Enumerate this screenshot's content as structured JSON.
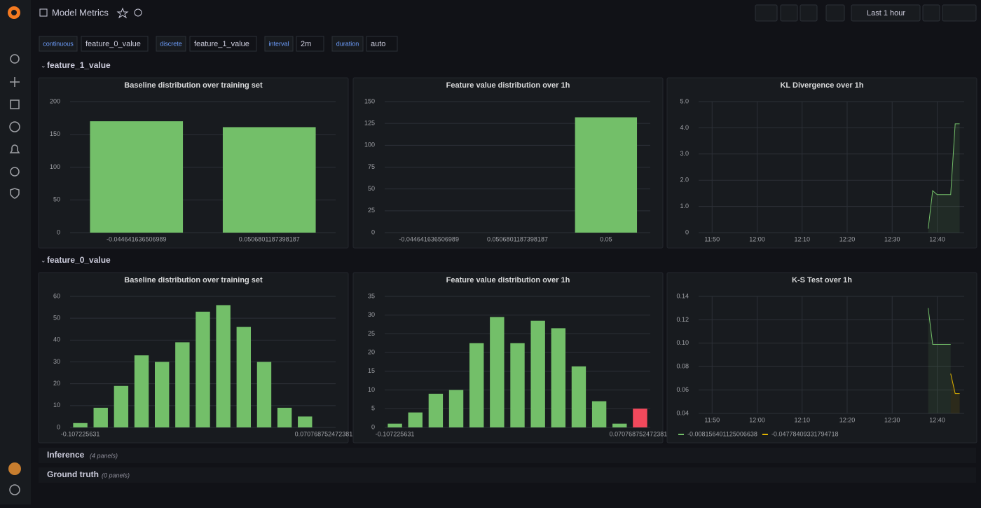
{
  "header": {
    "title": "Model Metrics",
    "time_range": "Last 1 hour"
  },
  "variables": [
    {
      "label": "continuous",
      "value": "feature_0_value"
    },
    {
      "label": "discrete",
      "value": "feature_1_value"
    },
    {
      "label": "interval",
      "value": "2m"
    },
    {
      "label": "duration",
      "value": "auto"
    }
  ],
  "rows": [
    {
      "title": "feature_1_value"
    },
    {
      "title": "feature_0_value"
    }
  ],
  "collapsed_rows": [
    {
      "title": "Inference",
      "note": "(4 panels)"
    },
    {
      "title": "Ground truth",
      "note": "(0 panels)"
    }
  ],
  "chart_data": [
    {
      "type": "bar",
      "title": "Baseline distribution over training set",
      "categories": [
        "-0.044641636506989",
        "0.0506801187398187"
      ],
      "values": [
        170,
        161
      ],
      "color": "#73bf69",
      "ylim": [
        0,
        200
      ],
      "yticks": [
        0,
        50,
        100,
        150,
        200
      ],
      "grid": true
    },
    {
      "type": "bar",
      "title": "Feature value distribution over 1h",
      "categories": [
        "-0.044641636506989",
        "0.0506801187398187",
        "0.05"
      ],
      "values": [
        null,
        null,
        132
      ],
      "color": "#73bf69",
      "ylim": [
        0,
        150
      ],
      "yticks": [
        0,
        25,
        50,
        75,
        100,
        125,
        150
      ],
      "grid": true
    },
    {
      "type": "line",
      "title": "KL Divergence over 1h",
      "x": [
        "12:38",
        "12:39",
        "12:40",
        "12:41",
        "12:42",
        "12:43",
        "12:44",
        "12:45"
      ],
      "values": [
        0.15,
        1.6,
        1.45,
        1.45,
        1.45,
        1.45,
        4.15,
        4.15
      ],
      "color": "#73bf69",
      "xlim": [
        "11:47",
        "12:46"
      ],
      "xticks": [
        "11:50",
        "12:00",
        "12:10",
        "12:20",
        "12:30",
        "12:40"
      ],
      "ylim": [
        0,
        5
      ],
      "yticks": [
        0,
        {
          "value": 1,
          "label": "1.0"
        },
        {
          "value": 2,
          "label": "2.0"
        },
        {
          "value": 3,
          "label": "3.0"
        },
        {
          "value": 4,
          "label": "4.0"
        },
        {
          "value": 5,
          "label": "5.0"
        }
      ],
      "grid": true
    },
    {
      "type": "bar",
      "title": "Baseline distribution over training set",
      "categories": [
        "-0.107225631",
        null,
        null,
        null,
        null,
        null,
        null,
        null,
        null,
        null,
        null,
        null,
        "0.0707687524723815"
      ],
      "values": [
        2,
        9,
        19,
        33,
        30,
        39,
        53,
        56,
        46,
        30,
        9,
        5,
        0
      ],
      "color": "#73bf69",
      "ylim": [
        0,
        60
      ],
      "yticks": [
        0,
        10,
        20,
        30,
        40,
        50,
        60
      ],
      "grid": true
    },
    {
      "type": "bar",
      "title": "Feature value distribution over 1h",
      "categories": [
        "-0.107225631",
        null,
        null,
        null,
        null,
        null,
        null,
        null,
        null,
        null,
        null,
        null,
        "0.0707687524723815"
      ],
      "values": [
        1,
        4,
        9,
        10,
        22.5,
        29.5,
        22.5,
        28.5,
        26.5,
        16.3,
        7,
        1,
        5
      ],
      "colors": [
        "#73bf69",
        "#73bf69",
        "#73bf69",
        "#73bf69",
        "#73bf69",
        "#73bf69",
        "#73bf69",
        "#73bf69",
        "#73bf69",
        "#73bf69",
        "#73bf69",
        "#73bf69",
        "#f2495c"
      ],
      "ylim": [
        0,
        35
      ],
      "yticks": [
        0,
        5,
        10,
        15,
        20,
        25,
        30,
        35
      ],
      "grid": true
    },
    {
      "type": "line",
      "title": "K-S Test over 1h",
      "x": [
        "12:38",
        "12:39",
        "12:40",
        "12:41",
        "12:42",
        "12:43",
        "12:44",
        "12:45"
      ],
      "series": [
        {
          "name": "-0.008156401125006638",
          "color": "#73bf69",
          "values": [
            0.13,
            0.099,
            0.099,
            0.099,
            0.099,
            0.099,
            null,
            null
          ]
        },
        {
          "name": "-0.04778409331794718",
          "color": "#e0b400",
          "values": [
            null,
            null,
            null,
            null,
            null,
            0.074,
            0.057,
            0.057
          ]
        }
      ],
      "xlim": [
        "11:47",
        "12:46"
      ],
      "xticks": [
        "11:50",
        "12:00",
        "12:10",
        "12:20",
        "12:30",
        "12:40"
      ],
      "ylim": [
        0.04,
        0.14
      ],
      "yticks": [
        0.04,
        0.06,
        0.08,
        {
          "value": 0.1,
          "label": "0.10"
        },
        0.12,
        0.14
      ],
      "grid": true,
      "legend": "bottom-left"
    }
  ]
}
